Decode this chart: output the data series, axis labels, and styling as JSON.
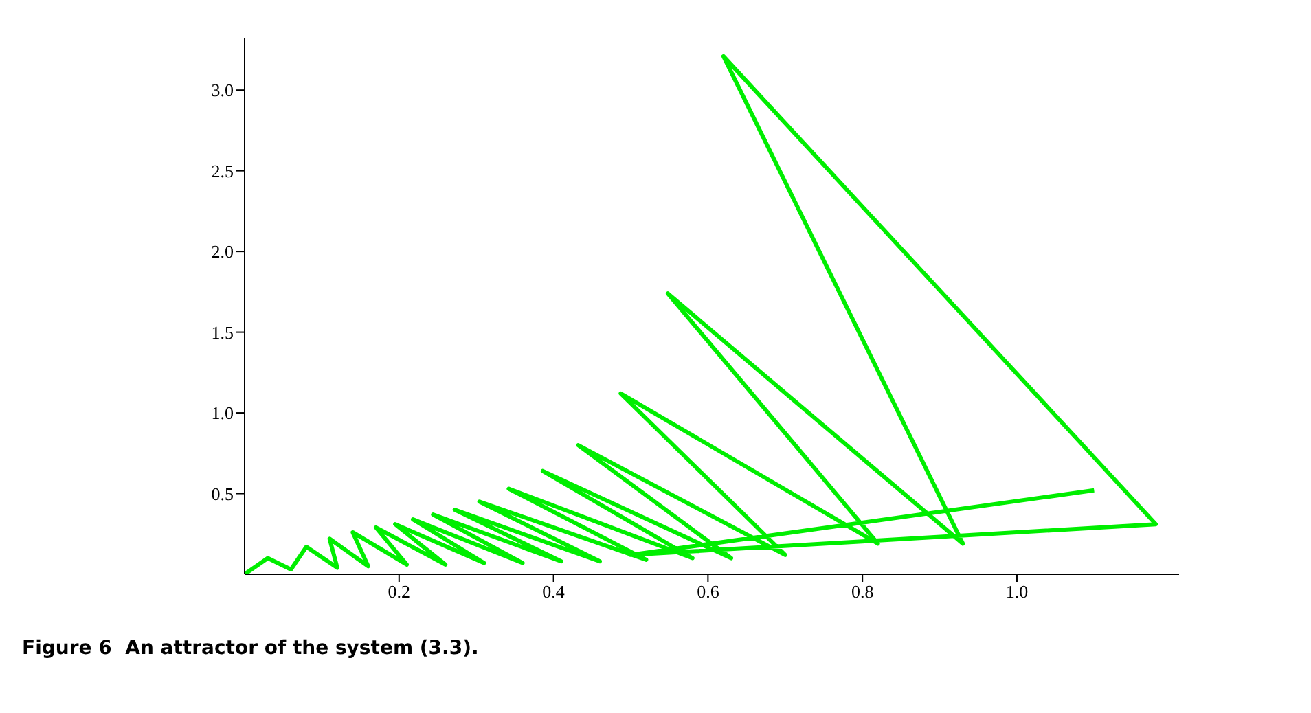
{
  "chart_data": {
    "type": "line",
    "annotations": [
      "Figure 6  An attractor of the system (3.3)."
    ],
    "xlim": [
      0,
      1.21
    ],
    "ylim": [
      0,
      3.32
    ],
    "xticks": [
      0.2,
      0.4,
      0.6,
      0.8,
      {
        "value": 1,
        "label": "1.0"
      }
    ],
    "yticks": [
      0.5,
      {
        "value": 1,
        "label": "1.0"
      },
      1.5,
      {
        "value": 2,
        "label": "2.0"
      },
      2.5,
      {
        "value": 3,
        "label": "3.0"
      }
    ],
    "marker": "none",
    "line_style": "solid",
    "series": [
      {
        "color": "#00ee00",
        "x": [
          0.0,
          0.03,
          0.06,
          0.08,
          0.12,
          0.11,
          0.16,
          0.14,
          0.21,
          0.17,
          0.26,
          0.195,
          0.31,
          0.218,
          0.36,
          0.244,
          0.41,
          0.272,
          0.46,
          0.304,
          0.52,
          0.342,
          0.58,
          0.386,
          0.63,
          0.432,
          0.7,
          0.487,
          0.82,
          0.548,
          0.93,
          0.62,
          1.18,
          0.5,
          1.1
        ],
        "values": [
          0.0,
          0.1,
          0.03,
          0.17,
          0.04,
          0.22,
          0.05,
          0.26,
          0.06,
          0.29,
          0.06,
          0.31,
          0.07,
          0.34,
          0.07,
          0.37,
          0.08,
          0.4,
          0.08,
          0.45,
          0.09,
          0.53,
          0.1,
          0.64,
          0.1,
          0.8,
          0.12,
          1.12,
          0.19,
          1.74,
          0.19,
          3.21,
          0.31,
          0.12,
          0.52
        ]
      }
    ]
  }
}
